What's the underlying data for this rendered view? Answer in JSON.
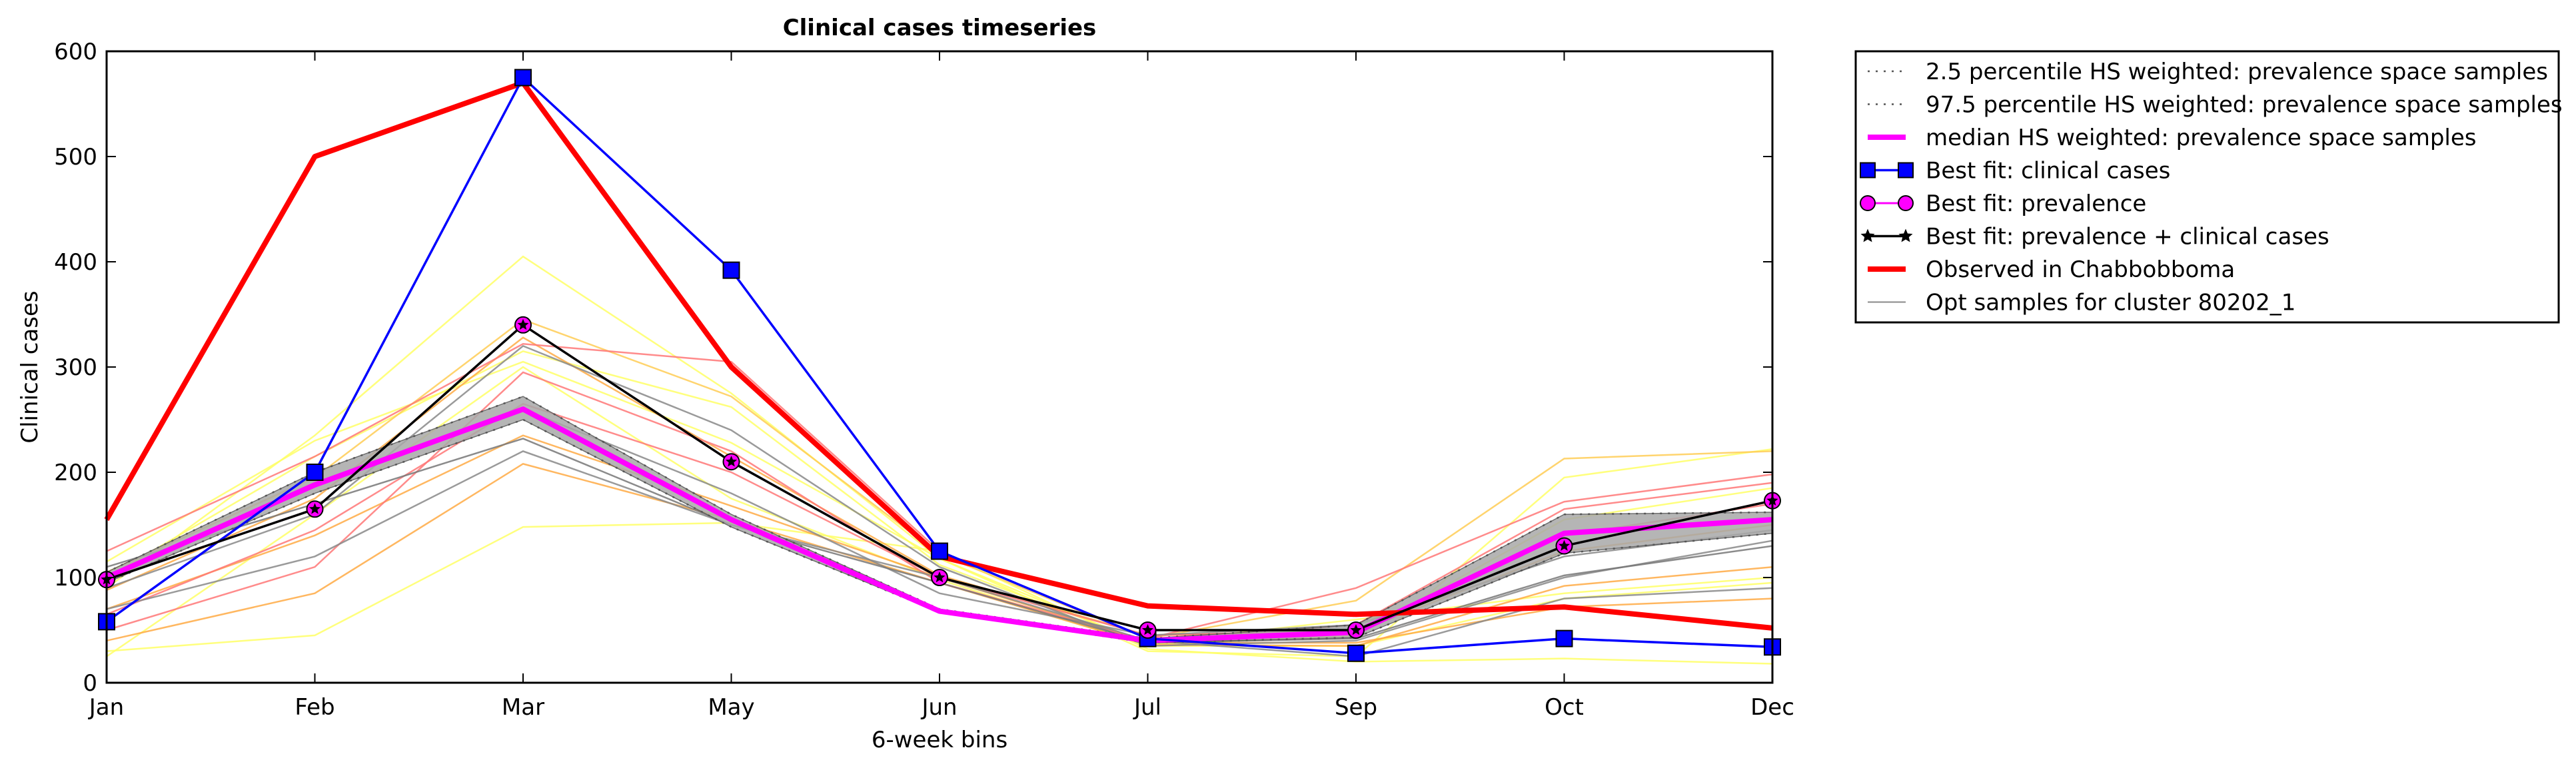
{
  "chart_data": {
    "type": "line",
    "title": "Clinical cases timeseries",
    "xlabel": "6-week bins",
    "ylabel": "Clinical cases",
    "categories": [
      "Jan",
      "Feb",
      "Mar",
      "May",
      "Jun",
      "Jul",
      "Sep",
      "Oct",
      "Dec"
    ],
    "ylim": [
      0,
      600
    ],
    "yticks": [
      0,
      100,
      200,
      300,
      400,
      500,
      600
    ],
    "grid": false,
    "legend_position": "outside-right",
    "band": {
      "lower": [
        95,
        180,
        250,
        148,
        67,
        38,
        43,
        123,
        142
      ],
      "upper": [
        105,
        200,
        272,
        160,
        70,
        42,
        55,
        160,
        162
      ]
    },
    "samples": [
      {
        "color": "#ffff66",
        "values": [
          30,
          45,
          148,
          152,
          125,
          32,
          20,
          23,
          18
        ]
      },
      {
        "color": "#ffff66",
        "values": [
          90,
          235,
          405,
          275,
          118,
          30,
          25,
          195,
          222
        ]
      },
      {
        "color": "#ffff66",
        "values": [
          100,
          215,
          315,
          262,
          112,
          38,
          60,
          85,
          100
        ]
      },
      {
        "color": "#ffff66",
        "values": [
          115,
          230,
          305,
          228,
          118,
          36,
          45,
          155,
          185
        ]
      },
      {
        "color": "#ffff66",
        "values": [
          25,
          160,
          300,
          175,
          98,
          35,
          35,
          80,
          95
        ]
      },
      {
        "color": "#ffcc55",
        "values": [
          105,
          195,
          345,
          272,
          122,
          42,
          78,
          213,
          220
        ]
      },
      {
        "color": "#ffaa44",
        "values": [
          40,
          85,
          208,
          155,
          95,
          36,
          35,
          92,
          110
        ]
      },
      {
        "color": "#ffaa44",
        "values": [
          70,
          140,
          235,
          168,
          100,
          38,
          38,
          72,
          80
        ]
      },
      {
        "color": "#ffaa44",
        "values": [
          88,
          175,
          328,
          215,
          102,
          45,
          48,
          125,
          150
        ]
      },
      {
        "color": "#ff7777",
        "values": [
          125,
          215,
          322,
          305,
          125,
          42,
          90,
          172,
          198
        ]
      },
      {
        "color": "#ff7777",
        "values": [
          50,
          110,
          295,
          220,
          95,
          40,
          55,
          165,
          190
        ]
      },
      {
        "color": "#ff7777",
        "values": [
          65,
          145,
          265,
          200,
          100,
          45,
          50,
          140,
          170
        ]
      },
      {
        "color": "#888888",
        "values": [
          70,
          120,
          220,
          150,
          100,
          40,
          25,
          80,
          90
        ]
      },
      {
        "color": "#888888",
        "values": [
          90,
          160,
          320,
          240,
          110,
          35,
          40,
          100,
          135
        ]
      },
      {
        "color": "#888888",
        "values": [
          100,
          190,
          260,
          180,
          85,
          45,
          55,
          120,
          145
        ]
      },
      {
        "color": "#777777",
        "values": [
          110,
          170,
          232,
          150,
          95,
          38,
          42,
          102,
          130
        ]
      }
    ],
    "series": [
      {
        "name": "2.5 percentile HS weighted: prevalence space samples",
        "style": "dotted",
        "color": "#555555",
        "values": [
          95,
          180,
          250,
          148,
          67,
          38,
          43,
          123,
          142
        ]
      },
      {
        "name": "97.5 percentile HS weighted: prevalence space samples",
        "style": "dotted",
        "color": "#555555",
        "values": [
          105,
          200,
          272,
          160,
          70,
          42,
          55,
          160,
          162
        ]
      },
      {
        "name": "median HS weighted: prevalence space samples",
        "style": "solid",
        "color": "#ff00ff",
        "values": [
          100,
          188,
          260,
          155,
          68,
          40,
          48,
          142,
          155
        ]
      },
      {
        "name": "Best fit: clinical cases",
        "style": "square",
        "color": "#0000ff",
        "values": [
          58,
          200,
          575,
          392,
          125,
          42,
          28,
          42,
          34
        ]
      },
      {
        "name": "Best fit: prevalence",
        "style": "circle",
        "color": "#ff00ff",
        "values": [
          98,
          165,
          340,
          210,
          100,
          50,
          50,
          130,
          173
        ]
      },
      {
        "name": "Best fit: prevalence + clinical cases",
        "style": "star",
        "color": "#000000",
        "values": [
          98,
          165,
          340,
          210,
          100,
          50,
          50,
          130,
          173
        ]
      },
      {
        "name": "Observed in Chabbobboma",
        "style": "solid",
        "color": "#ff0000",
        "values": [
          155,
          500,
          570,
          300,
          120,
          73,
          65,
          72,
          52
        ]
      },
      {
        "name": "Opt samples for cluster 80202_1",
        "style": "thin",
        "color": "#888888",
        "values": [
          null,
          null,
          null,
          null,
          null,
          null,
          null,
          null,
          null
        ]
      }
    ]
  }
}
